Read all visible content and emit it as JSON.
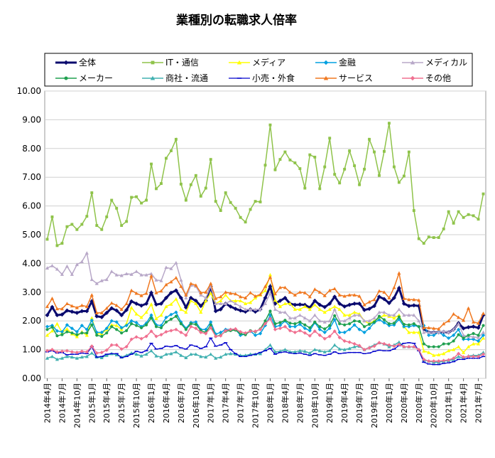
{
  "chart_data": {
    "type": "line",
    "title": "業種別の転職求人倍率",
    "xlabel": "",
    "ylabel": "",
    "ylim": [
      0,
      10
    ],
    "yticks": [
      "0.00",
      "1.00",
      "2.00",
      "3.00",
      "4.00",
      "5.00",
      "6.00",
      "7.00",
      "8.00",
      "9.00",
      "10.00"
    ],
    "grid": true,
    "legend_position": "top",
    "x_tick_labels": [
      "2014年4月",
      "2014年7月",
      "2014年10月",
      "2015年1月",
      "2015年4月",
      "2015年7月",
      "2015年10月",
      "2016年1月",
      "2016年4月",
      "2016年7月",
      "2016年10月",
      "2017年1月",
      "2017年4月",
      "2017年7月",
      "2017年10月",
      "2018年1月",
      "2018年4月",
      "2018年7月",
      "2018年10月",
      "2019年1月",
      "2019年4月",
      "2019年7月",
      "2019年10月",
      "2020年1月",
      "2020年4月",
      "2020年7月",
      "2020年10月",
      "2021年1月",
      "2021年4月",
      "2021年7月"
    ],
    "x": [
      "2014-04",
      "2014-05",
      "2014-06",
      "2014-07",
      "2014-08",
      "2014-09",
      "2014-10",
      "2014-11",
      "2014-12",
      "2015-01",
      "2015-02",
      "2015-03",
      "2015-04",
      "2015-05",
      "2015-06",
      "2015-07",
      "2015-08",
      "2015-09",
      "2015-10",
      "2015-11",
      "2015-12",
      "2016-01",
      "2016-02",
      "2016-03",
      "2016-04",
      "2016-05",
      "2016-06",
      "2016-07",
      "2016-08",
      "2016-09",
      "2016-10",
      "2016-11",
      "2016-12",
      "2017-01",
      "2017-02",
      "2017-03",
      "2017-04",
      "2017-05",
      "2017-06",
      "2017-07",
      "2017-08",
      "2017-09",
      "2017-10",
      "2017-11",
      "2017-12",
      "2018-01",
      "2018-02",
      "2018-03",
      "2018-04",
      "2018-05",
      "2018-06",
      "2018-07",
      "2018-08",
      "2018-09",
      "2018-10",
      "2018-11",
      "2018-12",
      "2019-01",
      "2019-02",
      "2019-03",
      "2019-04",
      "2019-05",
      "2019-06",
      "2019-07",
      "2019-08",
      "2019-09",
      "2019-10",
      "2019-11",
      "2019-12",
      "2020-01",
      "2020-02",
      "2020-03",
      "2020-04",
      "2020-05",
      "2020-06",
      "2020-07",
      "2020-08",
      "2020-09",
      "2020-10",
      "2020-11",
      "2020-12",
      "2021-01",
      "2021-02",
      "2021-03",
      "2021-04",
      "2021-05",
      "2021-06",
      "2021-07",
      "2021-08"
    ],
    "series": [
      {
        "name": "全体",
        "color": "#0a0a6e",
        "marker": "diamond",
        "width": 3,
        "values": [
          2.2,
          2.48,
          2.2,
          2.22,
          2.36,
          2.32,
          2.28,
          2.34,
          2.34,
          2.68,
          2.16,
          2.13,
          2.28,
          2.44,
          2.36,
          2.2,
          2.38,
          2.68,
          2.6,
          2.53,
          2.6,
          2.98,
          2.57,
          2.6,
          2.8,
          2.98,
          3.06,
          2.8,
          2.47,
          2.8,
          2.7,
          2.52,
          2.7,
          3.2,
          2.34,
          2.4,
          2.6,
          2.5,
          2.42,
          2.36,
          2.32,
          2.4,
          2.32,
          2.4,
          2.8,
          3.2,
          2.6,
          2.7,
          2.8,
          2.6,
          2.56,
          2.57,
          2.56,
          2.46,
          2.7,
          2.56,
          2.48,
          2.6,
          2.84,
          2.6,
          2.5,
          2.56,
          2.6,
          2.6,
          2.38,
          2.42,
          2.52,
          2.84,
          2.76,
          2.62,
          2.8,
          3.14,
          2.6,
          2.52,
          2.54,
          2.52,
          1.72,
          1.6,
          1.6,
          1.6,
          1.62,
          1.6,
          1.7,
          1.92,
          1.74,
          1.78,
          1.8,
          1.76,
          2.2
        ]
      },
      {
        "name": "IT・通信",
        "color": "#8fc34a",
        "marker": "square",
        "width": 1.5,
        "values": [
          4.84,
          5.62,
          4.62,
          4.7,
          5.28,
          5.36,
          5.18,
          5.36,
          5.64,
          6.46,
          5.32,
          5.18,
          5.62,
          6.2,
          5.92,
          5.32,
          5.46,
          6.3,
          6.32,
          6.1,
          6.2,
          7.46,
          6.6,
          6.78,
          7.66,
          7.92,
          8.32,
          6.76,
          6.2,
          6.74,
          7.06,
          6.34,
          6.62,
          7.62,
          6.16,
          5.84,
          6.46,
          6.12,
          5.92,
          5.6,
          5.44,
          5.88,
          6.16,
          6.14,
          7.42,
          8.82,
          7.26,
          7.62,
          7.88,
          7.6,
          7.5,
          7.3,
          6.62,
          7.78,
          7.7,
          6.6,
          7.36,
          8.36,
          7.1,
          6.8,
          7.28,
          7.92,
          7.4,
          6.74,
          7.28,
          8.32,
          7.88,
          7.06,
          7.9,
          8.88,
          7.36,
          6.82,
          7.04,
          7.88,
          5.84,
          4.86,
          4.7,
          4.92,
          4.9,
          4.9,
          5.2,
          5.8,
          5.4,
          5.8,
          5.6,
          5.7,
          5.66,
          5.54,
          6.42
        ]
      },
      {
        "name": "メディア",
        "color": "#ffff00",
        "marker": "triangle",
        "width": 1.5,
        "values": [
          1.5,
          1.65,
          1.9,
          1.6,
          1.72,
          1.55,
          1.45,
          1.62,
          1.5,
          2.1,
          1.55,
          1.56,
          1.7,
          1.86,
          1.84,
          1.7,
          1.9,
          2.46,
          2.24,
          2.12,
          2.3,
          2.58,
          2.08,
          2.2,
          2.5,
          2.58,
          2.76,
          2.4,
          2.3,
          2.7,
          2.6,
          2.3,
          2.7,
          2.96,
          2.6,
          2.7,
          2.9,
          2.7,
          2.7,
          2.7,
          2.6,
          2.64,
          2.8,
          2.9,
          3.06,
          3.6,
          2.72,
          2.5,
          2.6,
          2.6,
          2.4,
          2.4,
          2.5,
          2.4,
          2.56,
          2.4,
          2.3,
          2.4,
          2.5,
          2.4,
          2.2,
          2.2,
          2.3,
          2.24,
          2.0,
          1.9,
          2.0,
          2.1,
          2.2,
          2.16,
          2.1,
          2.2,
          1.8,
          1.6,
          1.6,
          1.6,
          0.95,
          0.9,
          0.8,
          0.82,
          0.86,
          0.96,
          1.0,
          1.1,
          0.9,
          1.1,
          1.2,
          1.2,
          1.4
        ]
      },
      {
        "name": "金融",
        "color": "#00a0e0",
        "marker": "diamond",
        "width": 1.5,
        "values": [
          1.8,
          1.84,
          1.65,
          1.62,
          1.86,
          1.74,
          1.62,
          1.84,
          1.7,
          2.02,
          1.6,
          1.6,
          1.74,
          2.0,
          1.96,
          1.76,
          1.84,
          2.0,
          1.94,
          1.8,
          1.92,
          2.2,
          1.86,
          1.84,
          2.12,
          2.22,
          2.3,
          1.96,
          1.74,
          1.94,
          1.96,
          1.7,
          1.7,
          1.96,
          1.54,
          1.6,
          1.7,
          1.7,
          1.7,
          1.5,
          1.54,
          1.64,
          1.5,
          1.56,
          1.84,
          2.2,
          1.8,
          1.84,
          2.0,
          1.8,
          1.8,
          1.88,
          1.74,
          1.66,
          1.94,
          1.7,
          1.6,
          1.74,
          2.04,
          1.6,
          1.6,
          1.7,
          1.86,
          1.7,
          1.6,
          1.74,
          1.94,
          2.04,
          1.94,
          1.84,
          1.86,
          2.06,
          1.8,
          1.8,
          1.84,
          1.8,
          1.84,
          1.5,
          1.5,
          1.6,
          1.5,
          1.4,
          1.5,
          1.7,
          1.36,
          1.36,
          1.36,
          1.3,
          1.5
        ]
      },
      {
        "name": "メディカル",
        "color": "#b8a8c8",
        "marker": "triangle",
        "width": 1.5,
        "values": [
          3.84,
          3.92,
          3.8,
          3.62,
          3.9,
          3.62,
          3.96,
          4.06,
          4.36,
          3.44,
          3.3,
          3.4,
          3.44,
          3.72,
          3.6,
          3.58,
          3.64,
          3.62,
          3.72,
          3.6,
          3.6,
          3.64,
          3.42,
          3.4,
          3.86,
          3.82,
          4.02,
          3.42,
          2.8,
          3.24,
          3.2,
          2.9,
          2.8,
          3.2,
          2.6,
          2.6,
          2.6,
          2.7,
          2.6,
          2.5,
          2.4,
          2.4,
          2.4,
          2.4,
          2.6,
          2.96,
          2.4,
          2.3,
          2.3,
          2.1,
          2.1,
          2.2,
          2.1,
          2.0,
          2.2,
          2.0,
          1.96,
          2.0,
          2.4,
          2.0,
          2.0,
          2.1,
          2.2,
          2.2,
          2.0,
          2.0,
          2.1,
          2.3,
          2.3,
          2.2,
          2.2,
          2.4,
          2.2,
          2.2,
          2.2,
          2.0,
          1.6,
          1.6,
          1.6,
          1.6,
          1.64,
          1.6,
          1.7,
          1.9,
          1.5,
          1.46,
          1.44,
          1.42,
          1.6
        ]
      },
      {
        "name": "メーカー",
        "color": "#20a050",
        "marker": "circle",
        "width": 1.5,
        "values": [
          1.7,
          1.78,
          1.48,
          1.52,
          1.62,
          1.58,
          1.52,
          1.58,
          1.58,
          1.86,
          1.5,
          1.46,
          1.58,
          1.8,
          1.7,
          1.58,
          1.66,
          1.9,
          1.84,
          1.76,
          1.86,
          2.1,
          1.8,
          1.76,
          1.96,
          2.06,
          2.16,
          1.9,
          1.7,
          1.9,
          1.88,
          1.66,
          1.6,
          1.86,
          1.46,
          1.5,
          1.64,
          1.66,
          1.68,
          1.56,
          1.52,
          1.66,
          1.62,
          1.72,
          2.0,
          2.34,
          1.9,
          1.94,
          2.02,
          1.92,
          1.9,
          1.96,
          1.86,
          1.76,
          1.96,
          1.8,
          1.72,
          1.84,
          2.18,
          1.9,
          1.86,
          1.9,
          2.0,
          1.98,
          1.8,
          1.88,
          1.96,
          2.16,
          2.04,
          1.9,
          1.92,
          2.14,
          1.88,
          1.86,
          1.9,
          1.8,
          1.2,
          1.1,
          1.1,
          1.1,
          1.2,
          1.2,
          1.3,
          1.52,
          1.4,
          1.5,
          1.56,
          1.5,
          1.84
        ]
      },
      {
        "name": "商社・流通",
        "color": "#40b0b0",
        "marker": "triangle",
        "width": 1.5,
        "values": [
          0.7,
          0.76,
          0.66,
          0.7,
          0.76,
          0.74,
          0.7,
          0.74,
          0.76,
          0.88,
          0.74,
          0.72,
          0.8,
          0.86,
          0.82,
          0.74,
          0.8,
          0.88,
          0.84,
          0.78,
          0.84,
          0.96,
          0.78,
          0.74,
          0.84,
          0.86,
          0.92,
          0.8,
          0.72,
          0.84,
          0.84,
          0.76,
          0.74,
          0.84,
          0.7,
          0.74,
          0.84,
          0.86,
          0.84,
          0.8,
          0.8,
          0.84,
          0.84,
          0.86,
          1.0,
          1.16,
          0.92,
          0.94,
          1.0,
          0.92,
          0.92,
          0.96,
          0.94,
          0.88,
          1.0,
          0.96,
          0.92,
          0.96,
          1.16,
          1.02,
          1.0,
          1.04,
          1.1,
          1.12,
          1.0,
          1.08,
          1.16,
          1.24,
          1.2,
          1.1,
          1.16,
          1.26,
          1.1,
          1.1,
          1.1,
          1.0,
          0.64,
          0.6,
          0.56,
          0.56,
          0.6,
          0.62,
          0.66,
          0.76,
          0.7,
          0.78,
          0.8,
          0.8,
          0.9
        ]
      },
      {
        "name": "小売・外食",
        "color": "#0000cc",
        "marker": "dash",
        "width": 1.2,
        "values": [
          0.92,
          0.96,
          0.88,
          0.9,
          0.82,
          0.84,
          0.84,
          0.88,
          0.86,
          1.1,
          0.74,
          0.76,
          0.84,
          0.86,
          0.86,
          0.72,
          0.76,
          0.84,
          0.94,
          0.9,
          0.96,
          1.22,
          1.02,
          1.04,
          1.12,
          1.1,
          1.14,
          1.06,
          1.02,
          1.16,
          1.12,
          1.04,
          1.1,
          1.4,
          1.12,
          1.16,
          1.24,
          1.0,
          0.86,
          0.76,
          0.76,
          0.8,
          0.84,
          0.9,
          0.96,
          1.04,
          0.84,
          0.9,
          0.92,
          0.88,
          0.86,
          0.88,
          0.84,
          0.8,
          0.86,
          0.82,
          0.8,
          0.84,
          0.92,
          0.86,
          0.88,
          0.9,
          0.9,
          0.9,
          0.86,
          0.88,
          0.94,
          0.98,
          0.96,
          0.96,
          1.02,
          1.14,
          1.22,
          1.24,
          1.22,
          0.96,
          0.56,
          0.5,
          0.48,
          0.48,
          0.52,
          0.54,
          0.58,
          0.66,
          0.66,
          0.7,
          0.7,
          0.7,
          0.76
        ]
      },
      {
        "name": "サービス",
        "color": "#f07820",
        "marker": "triangle",
        "width": 1.5,
        "values": [
          2.5,
          2.78,
          2.42,
          2.42,
          2.6,
          2.52,
          2.46,
          2.54,
          2.5,
          2.9,
          2.28,
          2.28,
          2.44,
          2.62,
          2.54,
          2.4,
          2.6,
          3.06,
          2.96,
          2.88,
          2.96,
          3.56,
          2.98,
          3.04,
          3.26,
          3.36,
          3.5,
          3.2,
          2.9,
          3.3,
          3.24,
          2.98,
          3.0,
          3.3,
          2.78,
          2.84,
          3.0,
          2.96,
          2.94,
          2.84,
          2.8,
          2.98,
          2.86,
          2.92,
          3.2,
          3.52,
          2.94,
          3.16,
          3.16,
          3.0,
          2.9,
          3.0,
          2.98,
          2.84,
          3.1,
          3.0,
          2.88,
          3.06,
          3.12,
          2.9,
          2.86,
          2.9,
          2.9,
          2.86,
          2.56,
          2.66,
          2.74,
          3.04,
          3.0,
          2.8,
          3.16,
          3.66,
          2.78,
          2.74,
          2.74,
          2.72,
          1.76,
          1.76,
          1.74,
          1.72,
          1.9,
          2.0,
          2.24,
          2.12,
          2.02,
          2.44,
          1.96,
          1.92,
          2.26
        ]
      },
      {
        "name": "その他",
        "color": "#f07090",
        "marker": "diamond",
        "width": 1.5,
        "values": [
          0.96,
          1.0,
          0.92,
          0.94,
          0.96,
          0.92,
          0.9,
          0.94,
          0.92,
          1.12,
          0.88,
          0.9,
          0.98,
          1.16,
          1.16,
          1.02,
          1.1,
          1.36,
          1.44,
          1.38,
          1.46,
          1.64,
          1.46,
          1.52,
          1.62,
          1.66,
          1.7,
          1.6,
          1.5,
          1.8,
          1.74,
          1.6,
          1.56,
          1.76,
          1.46,
          1.48,
          1.66,
          1.7,
          1.72,
          1.62,
          1.58,
          1.64,
          1.64,
          1.7,
          1.9,
          2.08,
          1.7,
          1.74,
          1.8,
          1.66,
          1.6,
          1.66,
          1.58,
          1.48,
          1.64,
          1.5,
          1.38,
          1.46,
          1.64,
          1.42,
          1.3,
          1.26,
          1.2,
          1.14,
          1.0,
          1.06,
          1.12,
          1.24,
          1.2,
          1.16,
          1.12,
          1.18,
          1.1,
          1.1,
          1.1,
          1.0,
          0.66,
          0.6,
          0.6,
          0.6,
          0.62,
          0.64,
          0.7,
          0.86,
          0.74,
          0.76,
          0.76,
          0.76,
          0.84
        ]
      }
    ]
  }
}
